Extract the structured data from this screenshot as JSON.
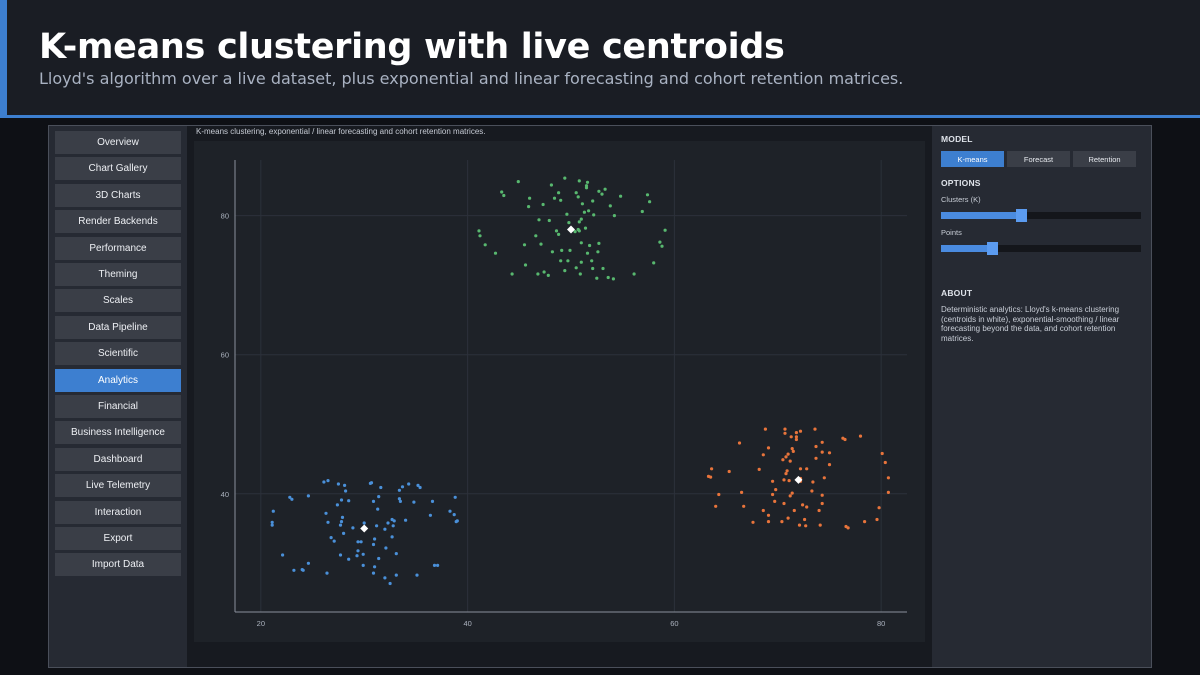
{
  "banner": {
    "title": "K-means clustering with live centroids",
    "subtitle": "Lloyd's algorithm over a live dataset, plus exponential and linear forecasting and cohort retention matrices."
  },
  "sidebar": {
    "items": [
      {
        "label": "Overview",
        "active": false
      },
      {
        "label": "Chart Gallery",
        "active": false
      },
      {
        "label": "3D Charts",
        "active": false
      },
      {
        "label": "Render Backends",
        "active": false
      },
      {
        "label": "Performance",
        "active": false
      },
      {
        "label": "Theming",
        "active": false
      },
      {
        "label": "Scales",
        "active": false
      },
      {
        "label": "Data Pipeline",
        "active": false
      },
      {
        "label": "Scientific",
        "active": false
      },
      {
        "label": "Analytics",
        "active": true
      },
      {
        "label": "Financial",
        "active": false
      },
      {
        "label": "Business Intelligence",
        "active": false
      },
      {
        "label": "Dashboard",
        "active": false
      },
      {
        "label": "Live Telemetry",
        "active": false
      },
      {
        "label": "Interaction",
        "active": false
      },
      {
        "label": "Export",
        "active": false
      },
      {
        "label": "Import Data",
        "active": false
      }
    ]
  },
  "main": {
    "caption": "K-means clustering, exponential / linear forecasting and cohort retention matrices."
  },
  "panel": {
    "model_title": "MODEL",
    "model_options": [
      {
        "label": "K-means",
        "active": true
      },
      {
        "label": "Forecast",
        "active": false
      },
      {
        "label": "Retention",
        "active": false
      }
    ],
    "options_title": "OPTIONS",
    "clusters_label": "Clusters (K)",
    "clusters_level": 0.4,
    "points_label": "Points",
    "points_level": 0.255,
    "about_title": "ABOUT",
    "about_text": "Deterministic analytics: Lloyd's k-means clustering (centroids in white), exponential-smoothing / linear forecasting beyond the data, and cohort retention matrices."
  },
  "colors": {
    "accent": "#3d7fd0",
    "cluster_colors": [
      "#4a90d9",
      "#58b86f",
      "#e8743b"
    ],
    "centroid": "#ffffff"
  },
  "chart_data": {
    "type": "scatter",
    "title": "",
    "xlabel": "",
    "ylabel": "",
    "xlim": [
      17.5,
      82.5
    ],
    "ylim": [
      23,
      88
    ],
    "xticks": [
      20,
      40,
      60,
      80
    ],
    "yticks": [
      40,
      60,
      80
    ],
    "grid": true,
    "legend": "none",
    "clusters": [
      {
        "centroid": [
          30,
          35
        ],
        "count": 80
      },
      {
        "centroid": [
          50,
          78
        ],
        "count": 80
      },
      {
        "centroid": [
          72,
          42
        ],
        "count": 80
      }
    ],
    "series": [
      {
        "points": [
          [
            24.0,
            29.1
          ],
          [
            22.1,
            31.2
          ],
          [
            36.4,
            36.9
          ],
          [
            31.3,
            37.8
          ],
          [
            32.0,
            27.9
          ],
          [
            31.2,
            35.4
          ],
          [
            26.1,
            41.7
          ],
          [
            29.9,
            31.3
          ],
          [
            27.7,
            35.5
          ],
          [
            27.4,
            38.4
          ],
          [
            22.8,
            39.5
          ],
          [
            33.4,
            40.5
          ],
          [
            36.6,
            38.9
          ],
          [
            38.8,
            39.5
          ],
          [
            29.9,
            29.7
          ],
          [
            31.6,
            40.9
          ],
          [
            39.0,
            36.1
          ],
          [
            34.0,
            36.2
          ],
          [
            30.9,
            28.6
          ],
          [
            38.9,
            36.0
          ],
          [
            29.4,
            31.8
          ],
          [
            28.0,
            34.3
          ],
          [
            32.7,
            33.8
          ],
          [
            24.1,
            29.0
          ],
          [
            29.3,
            31.1
          ],
          [
            35.1,
            28.3
          ],
          [
            36.8,
            29.7
          ],
          [
            23.0,
            39.2
          ],
          [
            23.2,
            29.0
          ],
          [
            27.8,
            39.1
          ],
          [
            27.5,
            41.4
          ],
          [
            33.5,
            38.9
          ],
          [
            27.9,
            36.6
          ],
          [
            33.7,
            41.0
          ],
          [
            31.0,
            29.5
          ],
          [
            32.0,
            34.9
          ],
          [
            31.4,
            39.6
          ],
          [
            24.6,
            30.0
          ],
          [
            30.0,
            35.8
          ],
          [
            32.3,
            35.8
          ],
          [
            28.9,
            35.1
          ],
          [
            30.6,
            41.5
          ],
          [
            29.4,
            33.1
          ],
          [
            34.3,
            41.4
          ],
          [
            37.1,
            29.7
          ],
          [
            29.7,
            33.1
          ],
          [
            33.4,
            39.3
          ],
          [
            28.5,
            30.6
          ],
          [
            38.3,
            37.5
          ],
          [
            33.1,
            31.4
          ],
          [
            21.1,
            35.9
          ],
          [
            32.9,
            36.1
          ],
          [
            27.8,
            36.0
          ],
          [
            30.7,
            41.6
          ],
          [
            32.1,
            32.2
          ],
          [
            34.8,
            38.8
          ],
          [
            30.9,
            32.7
          ],
          [
            26.8,
            33.7
          ],
          [
            35.2,
            41.2
          ],
          [
            28.1,
            41.2
          ],
          [
            32.5,
            27.1
          ],
          [
            33.1,
            28.3
          ],
          [
            21.2,
            37.5
          ],
          [
            32.7,
            36.3
          ],
          [
            31.4,
            30.7
          ],
          [
            26.4,
            28.6
          ],
          [
            35.4,
            40.9
          ],
          [
            31.0,
            33.5
          ],
          [
            30.9,
            38.9
          ],
          [
            38.7,
            37.0
          ],
          [
            28.5,
            39.0
          ],
          [
            32.8,
            35.4
          ],
          [
            26.5,
            41.9
          ],
          [
            26.3,
            37.2
          ],
          [
            27.1,
            33.2
          ],
          [
            24.6,
            39.7
          ],
          [
            27.7,
            31.2
          ],
          [
            28.2,
            40.4
          ],
          [
            21.1,
            35.5
          ],
          [
            26.5,
            35.9
          ]
        ]
      },
      {
        "points": [
          [
            52.7,
            83.5
          ],
          [
            56.9,
            80.6
          ],
          [
            51.0,
            79.5
          ],
          [
            45.9,
            81.3
          ],
          [
            54.2,
            80.0
          ],
          [
            44.3,
            71.6
          ],
          [
            53.3,
            83.8
          ],
          [
            49.9,
            75.0
          ],
          [
            50.9,
            71.6
          ],
          [
            52.0,
            73.5
          ],
          [
            46.9,
            79.4
          ],
          [
            57.4,
            83.0
          ],
          [
            49.8,
            79.0
          ],
          [
            52.1,
            72.4
          ],
          [
            45.6,
            72.9
          ],
          [
            41.7,
            75.8
          ],
          [
            48.2,
            74.8
          ],
          [
            49.4,
            72.1
          ],
          [
            54.8,
            82.8
          ],
          [
            51.3,
            80.5
          ],
          [
            51.6,
            84.8
          ],
          [
            52.5,
            71.0
          ],
          [
            58.6,
            76.2
          ],
          [
            50.4,
            77.7
          ],
          [
            48.8,
            77.3
          ],
          [
            53.1,
            72.4
          ],
          [
            50.7,
            78.0
          ],
          [
            49.1,
            75.0
          ],
          [
            50.5,
            83.3
          ],
          [
            48.6,
            77.8
          ],
          [
            51.6,
            74.6
          ],
          [
            46.0,
            82.5
          ],
          [
            46.6,
            77.1
          ],
          [
            51.7,
            80.7
          ],
          [
            52.7,
            76.0
          ],
          [
            52.2,
            80.1
          ],
          [
            51.8,
            75.7
          ],
          [
            49.0,
            82.2
          ],
          [
            53.6,
            71.1
          ],
          [
            44.9,
            84.9
          ],
          [
            51.0,
            73.3
          ],
          [
            46.8,
            71.6
          ],
          [
            43.5,
            82.9
          ],
          [
            50.8,
            85.0
          ],
          [
            51.4,
            78.2
          ],
          [
            49.0,
            73.5
          ],
          [
            43.3,
            83.4
          ],
          [
            48.8,
            83.3
          ],
          [
            49.6,
            80.2
          ],
          [
            48.4,
            82.5
          ],
          [
            50.5,
            72.5
          ],
          [
            51.1,
            81.7
          ],
          [
            53.0,
            83.1
          ],
          [
            50.7,
            82.7
          ],
          [
            41.2,
            77.1
          ],
          [
            57.6,
            82.0
          ],
          [
            54.1,
            70.9
          ],
          [
            51.0,
            76.1
          ],
          [
            59.1,
            77.9
          ],
          [
            50.8,
            79.1
          ],
          [
            51.5,
            84.0
          ],
          [
            50.8,
            77.8
          ],
          [
            48.1,
            84.4
          ],
          [
            56.1,
            71.6
          ],
          [
            47.4,
            71.9
          ],
          [
            41.1,
            77.8
          ],
          [
            42.7,
            74.6
          ],
          [
            51.5,
            84.3
          ],
          [
            49.7,
            73.5
          ],
          [
            47.1,
            75.9
          ],
          [
            47.9,
            79.3
          ],
          [
            49.4,
            85.4
          ],
          [
            58.8,
            75.6
          ],
          [
            58.0,
            73.2
          ],
          [
            52.6,
            74.8
          ],
          [
            45.5,
            75.8
          ],
          [
            47.3,
            81.6
          ],
          [
            52.1,
            82.1
          ],
          [
            47.8,
            71.4
          ],
          [
            53.8,
            81.4
          ]
        ]
      },
      {
        "points": [
          [
            71.4,
            40.1
          ],
          [
            63.6,
            43.6
          ],
          [
            78.0,
            48.3
          ],
          [
            68.6,
            45.6
          ],
          [
            71.8,
            47.8
          ],
          [
            70.8,
            45.3
          ],
          [
            71.0,
            45.7
          ],
          [
            69.5,
            41.8
          ],
          [
            80.7,
            42.3
          ],
          [
            72.8,
            38.1
          ],
          [
            72.2,
            41.8
          ],
          [
            68.8,
            49.3
          ],
          [
            80.4,
            44.5
          ],
          [
            72.7,
            35.4
          ],
          [
            73.6,
            49.3
          ],
          [
            76.6,
            35.3
          ],
          [
            68.6,
            37.6
          ],
          [
            72.4,
            38.4
          ],
          [
            73.4,
            41.7
          ],
          [
            73.7,
            46.8
          ],
          [
            69.1,
            36.9
          ],
          [
            70.8,
            42.9
          ],
          [
            69.7,
            38.9
          ],
          [
            71.4,
            46.5
          ],
          [
            71.3,
            48.2
          ],
          [
            74.3,
            46.0
          ],
          [
            74.1,
            35.5
          ],
          [
            67.6,
            35.9
          ],
          [
            72.6,
            36.3
          ],
          [
            71.5,
            46.1
          ],
          [
            66.3,
            47.3
          ],
          [
            80.7,
            40.2
          ],
          [
            75.0,
            44.2
          ],
          [
            70.7,
            48.7
          ],
          [
            72.2,
            43.6
          ],
          [
            71.1,
            41.9
          ],
          [
            63.5,
            42.4
          ],
          [
            71.6,
            37.6
          ],
          [
            74.3,
            39.8
          ],
          [
            75.0,
            45.9
          ],
          [
            72.1,
            42.0
          ],
          [
            76.5,
            47.8
          ],
          [
            78.4,
            36.0
          ],
          [
            72.1,
            35.5
          ],
          [
            72.8,
            43.6
          ],
          [
            74.3,
            47.4
          ],
          [
            66.7,
            38.2
          ],
          [
            64.0,
            38.2
          ],
          [
            72.2,
            49.0
          ],
          [
            76.8,
            35.1
          ],
          [
            66.5,
            40.2
          ],
          [
            69.5,
            39.9
          ],
          [
            71.2,
            39.7
          ],
          [
            70.6,
            42.0
          ],
          [
            71.2,
            44.7
          ],
          [
            68.2,
            43.5
          ],
          [
            71.8,
            48.8
          ],
          [
            70.4,
            36.0
          ],
          [
            74.5,
            42.3
          ],
          [
            64.3,
            39.9
          ],
          [
            76.3,
            48.0
          ],
          [
            80.1,
            45.8
          ],
          [
            73.3,
            40.4
          ],
          [
            71.0,
            36.5
          ],
          [
            74.0,
            37.6
          ],
          [
            79.8,
            38.0
          ],
          [
            70.5,
            44.9
          ],
          [
            72.2,
            42.2
          ],
          [
            71.8,
            48.2
          ],
          [
            73.7,
            45.1
          ],
          [
            70.6,
            38.6
          ],
          [
            79.6,
            36.3
          ],
          [
            70.9,
            43.3
          ],
          [
            69.8,
            40.6
          ],
          [
            69.1,
            46.6
          ],
          [
            74.3,
            38.6
          ],
          [
            63.3,
            42.5
          ],
          [
            70.7,
            49.3
          ],
          [
            65.3,
            43.2
          ],
          [
            69.1,
            36.0
          ]
        ]
      }
    ]
  }
}
